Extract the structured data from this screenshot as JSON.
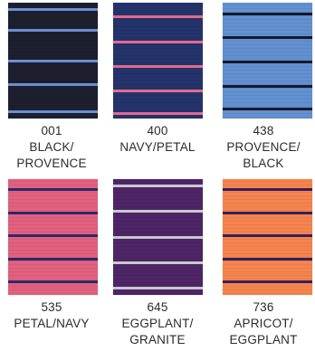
{
  "swatches": [
    {
      "code": "001",
      "name_lines": [
        "BLACK/",
        "PROVENCE"
      ],
      "bg": "#1d1f2e",
      "stripe": "#6a8ed4",
      "stripe_positions": [
        0.06,
        0.24,
        0.5,
        0.71,
        0.94
      ]
    },
    {
      "code": "400",
      "name_lines": [
        "NAVY/PETAL"
      ],
      "bg": "#24336b",
      "stripe": "#e36a8c",
      "stripe_positions": [
        0.12,
        0.34,
        0.55,
        0.76,
        0.96
      ]
    },
    {
      "code": "438",
      "name_lines": [
        "PROVENCE/",
        "BLACK"
      ],
      "bg": "#6390d0",
      "stripe": "#15182a",
      "stripe_positions": [
        0.1,
        0.3,
        0.51,
        0.72,
        0.92
      ]
    },
    {
      "code": "535",
      "name_lines": [
        "PETAL/NAVY"
      ],
      "bg": "#e2617f",
      "stripe": "#2b2a6a",
      "stripe_positions": [
        0.09,
        0.29,
        0.49,
        0.69,
        0.89
      ]
    },
    {
      "code": "645",
      "name_lines": [
        "EGGPLANT/",
        "GRANITE"
      ],
      "bg": "#4e2566",
      "stripe": "#c9c9cc",
      "stripe_positions": [
        0.06,
        0.28,
        0.5,
        0.72,
        0.94
      ]
    },
    {
      "code": "736",
      "name_lines": [
        "APRICOT/",
        "EGGPLANT"
      ],
      "bg": "#f6844f",
      "stripe": "#33205a",
      "stripe_positions": [
        0.09,
        0.29,
        0.49,
        0.69,
        0.89
      ]
    }
  ]
}
